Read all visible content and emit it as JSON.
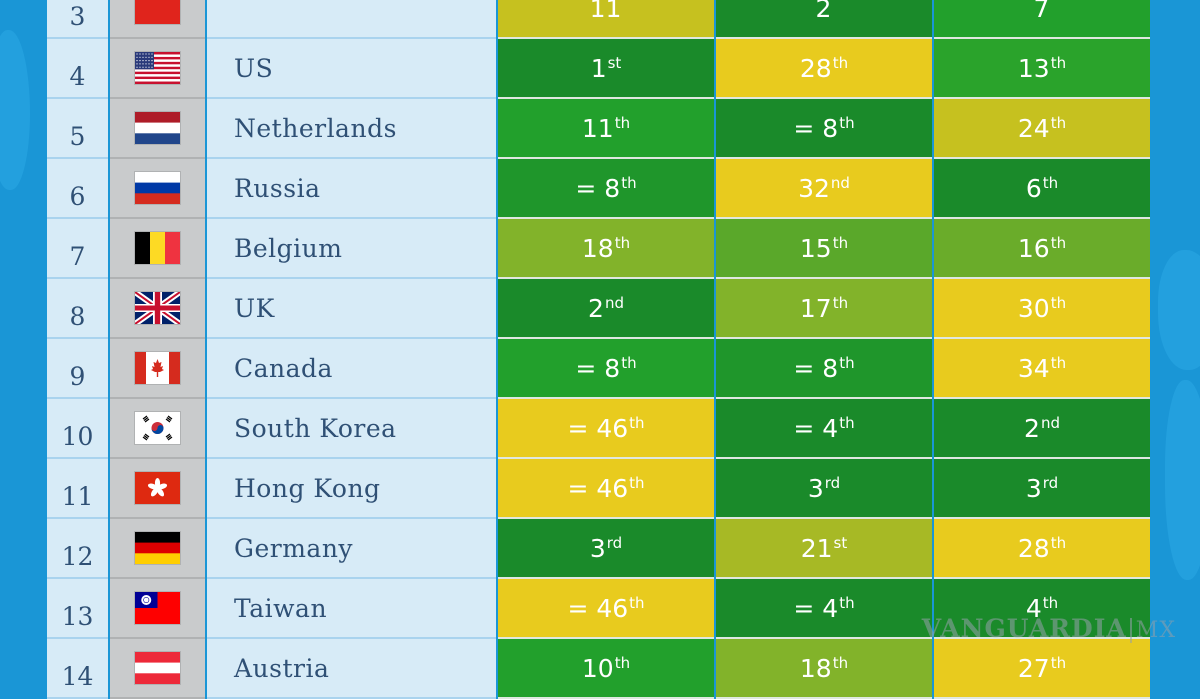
{
  "colors": {
    "dark_green": "#1a8a2a",
    "green": "#22a02c",
    "light_green": "#82b32a",
    "olive": "#c6c11f",
    "yellow": "#e8cb1e",
    "background_blue": "#1a96d6"
  },
  "rows": [
    {
      "rank": "3",
      "country": "",
      "flag_icon": "red-flag-icon",
      "values": [
        {
          "num": "11",
          "suffix": "",
          "bg": "#c6c11f"
        },
        {
          "num": "2",
          "suffix": "",
          "bg": "#1a8a2a"
        },
        {
          "num": "7",
          "suffix": "",
          "bg": "#22a02c"
        }
      ]
    },
    {
      "rank": "4",
      "country": "US",
      "flag_icon": "us-flag-icon",
      "values": [
        {
          "num": "1",
          "suffix": "st",
          "bg": "#1a8a2a"
        },
        {
          "num": "28",
          "suffix": "th",
          "bg": "#e8cb1e"
        },
        {
          "num": "13",
          "suffix": "th",
          "bg": "#2aa32b"
        }
      ]
    },
    {
      "rank": "5",
      "country": "Netherlands",
      "flag_icon": "netherlands-flag-icon",
      "values": [
        {
          "num": "11",
          "suffix": "th",
          "bg": "#22a02c"
        },
        {
          "num": "= 8",
          "suffix": "th",
          "bg": "#1a8a2a"
        },
        {
          "num": "24",
          "suffix": "th",
          "bg": "#c6c11f"
        }
      ]
    },
    {
      "rank": "6",
      "country": "Russia",
      "flag_icon": "russia-flag-icon",
      "values": [
        {
          "num": "= 8",
          "suffix": "th",
          "bg": "#1f962b"
        },
        {
          "num": "32",
          "suffix": "nd",
          "bg": "#e8cb1e"
        },
        {
          "num": "6",
          "suffix": "th",
          "bg": "#1a8a2a"
        }
      ]
    },
    {
      "rank": "7",
      "country": "Belgium",
      "flag_icon": "belgium-flag-icon",
      "values": [
        {
          "num": "18",
          "suffix": "th",
          "bg": "#82b32a"
        },
        {
          "num": "15",
          "suffix": "th",
          "bg": "#5aa82a"
        },
        {
          "num": "16",
          "suffix": "th",
          "bg": "#6aac2a"
        }
      ]
    },
    {
      "rank": "8",
      "country": "UK",
      "flag_icon": "uk-flag-icon",
      "values": [
        {
          "num": "2",
          "suffix": "nd",
          "bg": "#1a8a2a"
        },
        {
          "num": "17",
          "suffix": "th",
          "bg": "#82b32a"
        },
        {
          "num": "30",
          "suffix": "th",
          "bg": "#e8cb1e"
        }
      ]
    },
    {
      "rank": "9",
      "country": "Canada",
      "flag_icon": "canada-flag-icon",
      "values": [
        {
          "num": "= 8",
          "suffix": "th",
          "bg": "#22a02c"
        },
        {
          "num": "= 8",
          "suffix": "th",
          "bg": "#1f962b"
        },
        {
          "num": "34",
          "suffix": "th",
          "bg": "#e8cb1e"
        }
      ]
    },
    {
      "rank": "10",
      "country": "South Korea",
      "flag_icon": "south-korea-flag-icon",
      "values": [
        {
          "num": "= 46",
          "suffix": "th",
          "bg": "#e8cb1e"
        },
        {
          "num": "= 4",
          "suffix": "th",
          "bg": "#1a8a2a"
        },
        {
          "num": "2",
          "suffix": "nd",
          "bg": "#1a8a2a"
        }
      ]
    },
    {
      "rank": "11",
      "country": "Hong Kong",
      "flag_icon": "hong-kong-flag-icon",
      "values": [
        {
          "num": "= 46",
          "suffix": "th",
          "bg": "#e8cb1e"
        },
        {
          "num": "3",
          "suffix": "rd",
          "bg": "#1a8a2a"
        },
        {
          "num": "3",
          "suffix": "rd",
          "bg": "#1a8a2a"
        }
      ]
    },
    {
      "rank": "12",
      "country": "Germany",
      "flag_icon": "germany-flag-icon",
      "values": [
        {
          "num": "3",
          "suffix": "rd",
          "bg": "#1a8a2a"
        },
        {
          "num": "21",
          "suffix": "st",
          "bg": "#a7b925"
        },
        {
          "num": "28",
          "suffix": "th",
          "bg": "#e8cb1e"
        }
      ]
    },
    {
      "rank": "13",
      "country": "Taiwan",
      "flag_icon": "taiwan-flag-icon",
      "values": [
        {
          "num": "= 46",
          "suffix": "th",
          "bg": "#e8cb1e"
        },
        {
          "num": "= 4",
          "suffix": "th",
          "bg": "#1a8a2a"
        },
        {
          "num": "4",
          "suffix": "th",
          "bg": "#1a8a2a"
        }
      ]
    },
    {
      "rank": "14",
      "country": "Austria",
      "flag_icon": "austria-flag-icon",
      "values": [
        {
          "num": "10",
          "suffix": "th",
          "bg": "#22a02c"
        },
        {
          "num": "18",
          "suffix": "th",
          "bg": "#82b32a"
        },
        {
          "num": "27",
          "suffix": "th",
          "bg": "#e8cb1e"
        }
      ]
    }
  ],
  "watermark": {
    "brand": "VANGUARDIA",
    "region": "MX"
  }
}
